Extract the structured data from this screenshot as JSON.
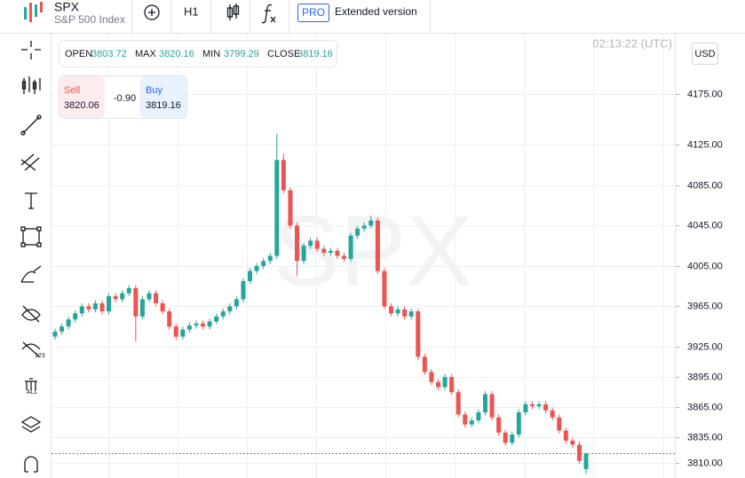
{
  "toolbar": {
    "symbol_name": "S&P 500 Index",
    "timeframe": "H1",
    "pro_badge": "PRO",
    "pro_text": "Extended version"
  },
  "left_toolbar": {
    "hide_labels_badge": "123",
    "delete_all_badge": "ALL"
  },
  "quote_panel": {
    "open_label": "OPEN",
    "max_label": "MAX",
    "min_label": "MIN",
    "close_label": "CLOSE",
    "sell_label": "Sell",
    "sell_price": 3820.06,
    "spread": "-0.90",
    "buy_label": "Buy",
    "buy_price": 3819.16
  },
  "clock": "02:13:22 (UTC)",
  "currency": "USD",
  "chart_data": {
    "type": "candlestick",
    "symbol": "SPX",
    "open": [
      3935,
      3940,
      3945,
      3952,
      3958,
      3965,
      3962,
      3968,
      3960,
      3975,
      3972,
      3978,
      3983,
      3955,
      3972,
      3978,
      3968,
      3960,
      3945,
      3935,
      3942,
      3946,
      3948,
      3945,
      3950,
      3955,
      3960,
      3965,
      3972,
      3990,
      4000,
      4005,
      4010,
      4015,
      4110,
      4080,
      4045,
      4010,
      4025,
      4030,
      4022,
      4018,
      4020,
      4015,
      4012,
      4035,
      4042,
      4045,
      4050,
      4000,
      3965,
      3958,
      3962,
      3955,
      3960,
      3915,
      3900,
      3890,
      3885,
      3895,
      3880,
      3858,
      3848,
      3852,
      3860,
      3878,
      3855,
      3840,
      3830,
      3838,
      3860,
      3868,
      3866,
      3868,
      3862,
      3855,
      3842,
      3832,
      3828,
      3803.72
    ],
    "high": [
      3943,
      3948,
      3955,
      3961,
      3968,
      3968,
      3971,
      3971,
      3978,
      3978,
      3981,
      3986,
      3986,
      3975,
      3981,
      3981,
      3971,
      3963,
      3948,
      3945,
      3949,
      3951,
      3951,
      3953,
      3958,
      3963,
      3968,
      3975,
      3993,
      4003,
      4008,
      4013,
      4018,
      4136,
      4116,
      4083,
      4048,
      4028,
      4033,
      4033,
      4025,
      4023,
      4023,
      4018,
      4038,
      4045,
      4048,
      4055,
      4053,
      4003,
      3968,
      3965,
      3965,
      3963,
      3963,
      3918,
      3903,
      3893,
      3898,
      3898,
      3883,
      3861,
      3855,
      3863,
      3881,
      3881,
      3858,
      3843,
      3841,
      3863,
      3871,
      3871,
      3871,
      3871,
      3865,
      3858,
      3845,
      3835,
      3831,
      3820.16
    ],
    "low": [
      3932,
      3937,
      3942,
      3949,
      3955,
      3959,
      3959,
      3957,
      3957,
      3969,
      3969,
      3975,
      3930,
      3952,
      3969,
      3965,
      3957,
      3942,
      3932,
      3932,
      3939,
      3943,
      3942,
      3942,
      3947,
      3952,
      3957,
      3962,
      3969,
      3987,
      3997,
      4002,
      4007,
      4012,
      4077,
      4042,
      3995,
      4007,
      4022,
      4019,
      4015,
      4015,
      4012,
      4009,
      4009,
      4032,
      4039,
      4042,
      3997,
      3962,
      3955,
      3955,
      3952,
      3952,
      3912,
      3897,
      3887,
      3882,
      3882,
      3877,
      3855,
      3845,
      3845,
      3849,
      3857,
      3852,
      3837,
      3827,
      3827,
      3835,
      3857,
      3863,
      3863,
      3859,
      3852,
      3839,
      3829,
      3825,
      3809,
      3799.29
    ],
    "close": [
      3940,
      3945,
      3952,
      3958,
      3965,
      3962,
      3968,
      3960,
      3975,
      3972,
      3978,
      3983,
      3955,
      3972,
      3978,
      3968,
      3960,
      3945,
      3935,
      3942,
      3946,
      3948,
      3945,
      3950,
      3955,
      3960,
      3965,
      3972,
      3990,
      4000,
      4005,
      4010,
      4015,
      4110,
      4080,
      4045,
      4010,
      4025,
      4030,
      4022,
      4018,
      4020,
      4015,
      4012,
      4035,
      4042,
      4045,
      4050,
      4000,
      3965,
      3958,
      3962,
      3955,
      3960,
      3915,
      3900,
      3890,
      3885,
      3895,
      3880,
      3858,
      3848,
      3852,
      3860,
      3878,
      3855,
      3840,
      3830,
      3838,
      3860,
      3868,
      3866,
      3868,
      3862,
      3855,
      3842,
      3832,
      3828,
      3812,
      3819.16
    ],
    "up_color": "#26a69a",
    "down_color": "#ef5350",
    "ylim": [
      3795,
      4235
    ],
    "yticks": [
      {
        "value": 4175,
        "label": "4175.00"
      },
      {
        "value": 4125,
        "label": "4125.00"
      },
      {
        "value": 4085,
        "label": "4085.00"
      },
      {
        "value": 4045,
        "label": "4045.00"
      },
      {
        "value": 4005,
        "label": "4005.00"
      },
      {
        "value": 3965,
        "label": "3965.00"
      },
      {
        "value": 3925,
        "label": "3925.00"
      },
      {
        "value": 3895,
        "label": "3895.00"
      },
      {
        "value": 3865,
        "label": "3865.00"
      },
      {
        "value": 3835,
        "label": "3835.00"
      },
      {
        "value": 3810,
        "label": "3810.00"
      }
    ],
    "grid": true,
    "price_line": true
  }
}
